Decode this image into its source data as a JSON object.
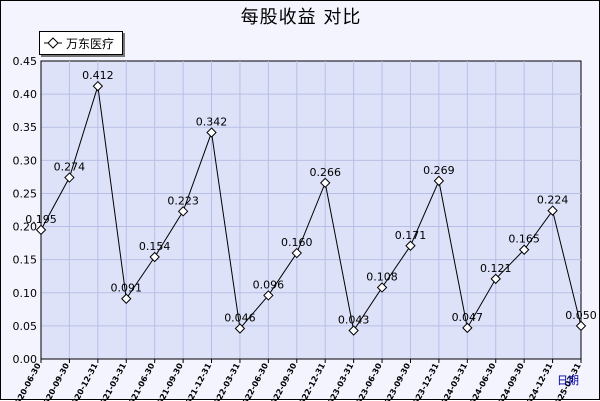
{
  "chart_data": {
    "type": "line",
    "title": "每股收益  对比",
    "xlabel": "日期",
    "ylabel": "",
    "ylim": [
      0,
      0.45
    ],
    "yticks": [
      "0.00",
      "0.05",
      "0.10",
      "0.15",
      "0.20",
      "0.25",
      "0.30",
      "0.35",
      "0.40",
      "0.45"
    ],
    "grid": true,
    "legend_position": "top-left",
    "categories": [
      "2020-06-30",
      "2020-09-30",
      "2020-12-31",
      "2021-03-31",
      "2021-06-30",
      "2021-09-30",
      "2021-12-31",
      "2022-03-31",
      "2022-06-30",
      "2022-09-30",
      "2022-12-31",
      "2023-03-31",
      "2023-06-30",
      "2023-09-30",
      "2023-12-31",
      "2024-03-31",
      "2024-06-30",
      "2024-09-30",
      "2024-12-31",
      "2025-03-31"
    ],
    "series": [
      {
        "name": "万东医疗",
        "values": [
          0.195,
          0.274,
          0.412,
          0.091,
          0.154,
          0.223,
          0.342,
          0.046,
          0.096,
          0.16,
          0.266,
          0.043,
          0.108,
          0.171,
          0.269,
          0.047,
          0.121,
          0.165,
          0.224,
          0.05
        ],
        "labels": [
          "0.195",
          "0.274",
          "0.412",
          "0.091",
          "0.154",
          "0.223",
          "0.342",
          "0.046",
          "0.096",
          "0.160",
          "0.266",
          "0.043",
          "0.108",
          "0.171",
          "0.269",
          "0.047",
          "0.121",
          "0.165",
          "0.224",
          "0.050"
        ]
      }
    ]
  },
  "colors": {
    "plot_background": "#dde2f8",
    "frame_background": "#f4f4ff",
    "grid": "#b8bfe6",
    "line": "#000000",
    "x_unit_text": "#0000aa"
  }
}
